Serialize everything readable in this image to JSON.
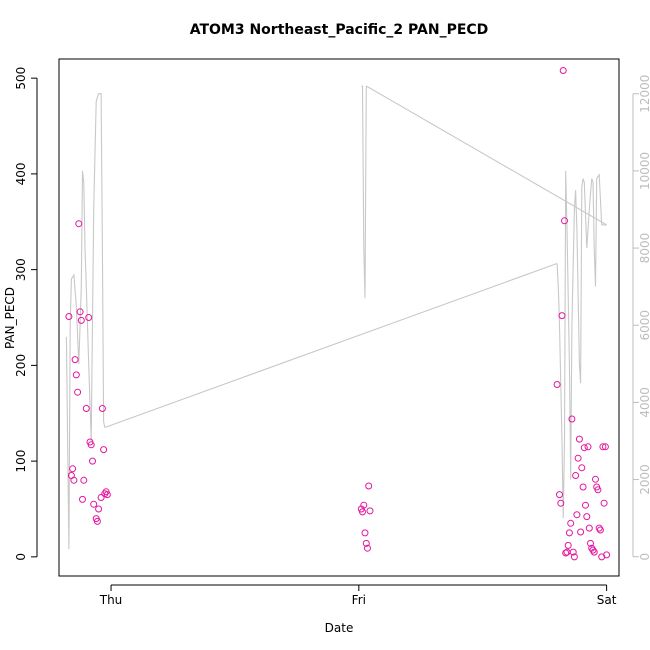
{
  "chart_data": {
    "type": "scatter",
    "title": "ATOM3 Northeast_Pacific_2 PAN_PECD",
    "xlabel": "Date",
    "ylabel": "PAN_PECD",
    "x_ticks": [
      {
        "label": "Thu",
        "value": 1.0
      },
      {
        "label": "Fri",
        "value": 2.0
      },
      {
        "label": "Sat",
        "value": 3.0
      }
    ],
    "xlim": [
      0.79,
      3.05
    ],
    "ylim": [
      -20,
      520
    ],
    "y_ticks": [
      0,
      100,
      200,
      300,
      400,
      500
    ],
    "y2lim": [
      -500,
      12900
    ],
    "y2_ticks": [
      0,
      2000,
      4000,
      6000,
      8000,
      10000,
      12000
    ],
    "colors": {
      "points": "#e6169e",
      "line": "#c8c8c8",
      "axis": "#000000",
      "axis2": "#bdbdbd"
    },
    "series": [
      {
        "kind": "points",
        "x": [
          0.83,
          0.84,
          0.845,
          0.85,
          0.855,
          0.86,
          0.865,
          0.87,
          0.875,
          0.88,
          0.885,
          0.89,
          0.9,
          0.91,
          0.915,
          0.92,
          0.925,
          0.93,
          0.94,
          0.945,
          0.95,
          0.96,
          0.965,
          0.97,
          0.975,
          0.98,
          0.985,
          2.01,
          2.015,
          2.02,
          2.025,
          2.03,
          2.035,
          2.04,
          2.045,
          2.8,
          2.81,
          2.815,
          2.82,
          2.825,
          2.83,
          2.835,
          2.84,
          2.845,
          2.85,
          2.855,
          2.86,
          2.865,
          2.87,
          2.875,
          2.88,
          2.885,
          2.89,
          2.895,
          2.9,
          2.905,
          2.91,
          2.915,
          2.92,
          2.925,
          2.93,
          2.935,
          2.94,
          2.945,
          2.95,
          2.955,
          2.96,
          2.965,
          2.97,
          2.975,
          2.98,
          2.985,
          2.99,
          2.995,
          3.0
        ],
        "y": [
          251,
          85,
          92,
          80,
          206,
          190,
          172,
          348,
          256,
          247,
          60,
          80,
          155,
          250,
          120,
          117,
          100,
          55,
          40,
          37,
          50,
          62,
          155,
          112,
          66,
          68,
          65,
          50,
          47,
          54,
          25,
          14,
          9,
          74,
          48,
          180,
          65,
          56,
          252,
          508,
          351,
          4,
          5,
          12,
          25,
          35,
          144,
          5,
          0,
          85,
          44,
          103,
          123,
          26,
          93,
          73,
          114,
          54,
          42,
          115,
          30,
          14,
          9,
          7,
          5,
          81,
          73,
          70,
          30,
          28,
          0,
          115,
          56,
          115,
          2
        ]
      },
      {
        "kind": "line",
        "axis": "y2",
        "x": [
          0.82,
          0.83,
          0.835,
          0.84,
          0.85,
          0.86,
          0.87,
          0.88,
          0.885,
          0.89,
          0.895,
          0.9,
          0.91,
          0.92,
          0.93,
          0.94,
          0.95,
          0.96,
          0.965,
          0.97,
          0.975,
          2.01,
          2.015,
          2.02,
          2.025,
          2.03,
          2.8,
          2.805,
          2.81,
          2.82,
          2.825,
          2.83,
          2.835,
          2.84,
          2.85,
          2.855,
          2.86,
          2.87,
          2.875,
          2.88,
          2.89,
          2.895,
          2.9,
          2.905,
          2.91,
          2.92,
          2.93,
          2.94,
          2.945,
          2.95,
          2.955,
          2.96,
          2.97,
          2.98,
          2.99,
          3.0
        ],
        "y": [
          5700,
          200,
          6000,
          7200,
          7300,
          6500,
          5000,
          7000,
          10000,
          9700,
          8000,
          7000,
          5000,
          3000,
          9000,
          11800,
          12000,
          12000,
          8000,
          3500,
          3350,
          12200,
          12200,
          8000,
          6700,
          12200,
          7600,
          7000,
          6000,
          3000,
          1000,
          3000,
          10000,
          8500,
          5000,
          2000,
          6000,
          9000,
          9500,
          8500,
          5000,
          4500,
          9600,
          9800,
          9700,
          8000,
          9000,
          9800,
          9700,
          8000,
          7000,
          9800,
          9900,
          8600,
          8600,
          8600
        ]
      }
    ],
    "connectors": [
      {
        "from": [
          0.975,
          3350
        ],
        "to": [
          2.8,
          7600
        ]
      },
      {
        "from": [
          2.03,
          12200
        ],
        "to": [
          3.0,
          8600
        ]
      }
    ]
  }
}
